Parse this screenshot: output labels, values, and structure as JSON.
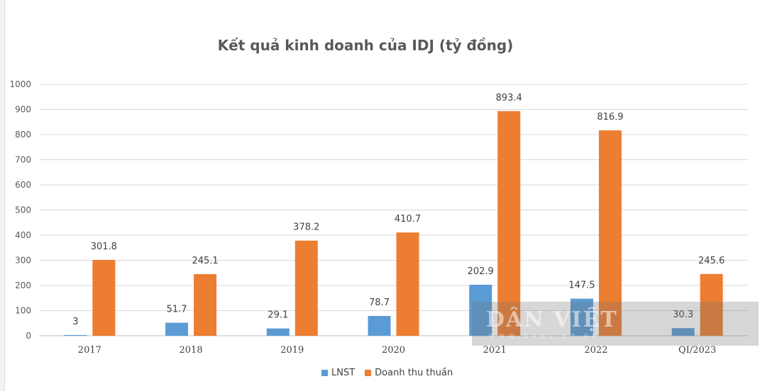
{
  "watermark": {
    "text": "DÂN VIỆT",
    "subtext": "WWW.DANVIET.VN"
  },
  "chart_data": {
    "type": "bar",
    "title": "Kết quả kinh doanh của IDJ (tỷ đồng)",
    "categories": [
      "2017",
      "2018",
      "2019",
      "2020",
      "2021",
      "2022",
      "QI/2023"
    ],
    "series": [
      {
        "name": "LNST",
        "color": "#5b9bd5",
        "values": [
          3,
          51.7,
          29.1,
          78.7,
          202.9,
          147.5,
          30.3
        ],
        "labels": [
          "3",
          "51.7",
          "29.1",
          "78.7",
          "202.9",
          "147.5",
          "30.3"
        ]
      },
      {
        "name": "Doanh thu thuần",
        "color": "#ed7d31",
        "values": [
          301.8,
          245.1,
          378.2,
          410.7,
          893.4,
          816.9,
          245.6
        ],
        "labels": [
          "301.8",
          "245.1",
          "378.2",
          "410.7",
          "893.4",
          "816.9",
          "245.6"
        ]
      }
    ],
    "ylim": [
      0,
      1000
    ],
    "yticks": [
      "0",
      "100",
      "200",
      "300",
      "400",
      "500",
      "600",
      "700",
      "800",
      "900",
      "1000"
    ],
    "grid": true,
    "legend_position": "bottom"
  }
}
